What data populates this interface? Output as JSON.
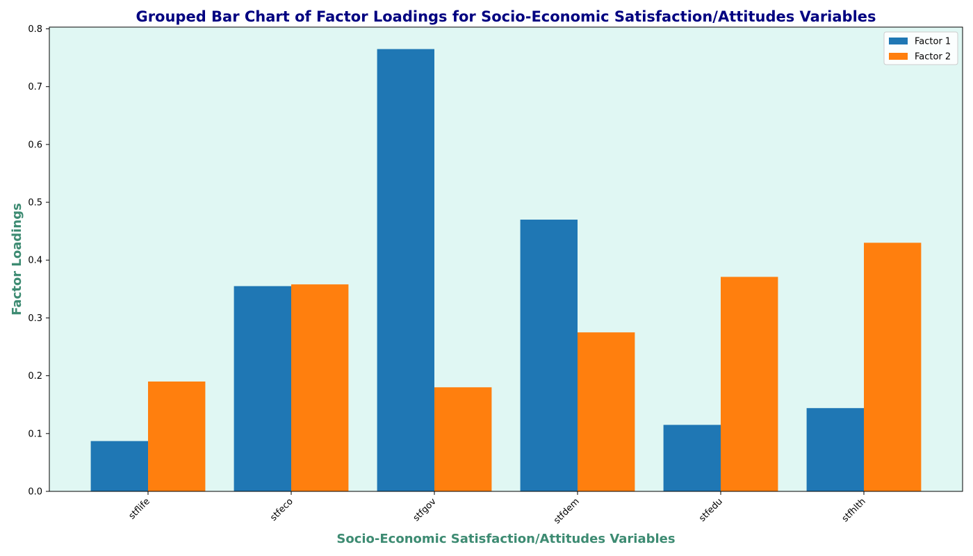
{
  "chart_data": {
    "type": "bar",
    "title": "Grouped Bar Chart of Factor Loadings for Socio-Economic Satisfaction/Attitudes Variables",
    "xlabel": "Socio-Economic Satisfaction/Attitudes Variables",
    "ylabel": "Factor Loadings",
    "categories": [
      "stflife",
      "stfeco",
      "stfgov",
      "stfdem",
      "stfedu",
      "stfhlth"
    ],
    "series": [
      {
        "name": "Factor 1",
        "color": "#1f77b4",
        "values": [
          0.087,
          0.355,
          0.765,
          0.47,
          0.115,
          0.144
        ]
      },
      {
        "name": "Factor 2",
        "color": "#ff7f0e",
        "values": [
          0.19,
          0.358,
          0.18,
          0.275,
          0.371,
          0.43
        ]
      }
    ],
    "ylim": [
      0,
      0.803
    ],
    "yticks": [
      "0.0",
      "0.1",
      "0.2",
      "0.3",
      "0.4",
      "0.5",
      "0.6",
      "0.7",
      "0.8"
    ],
    "legend_position": "top-right",
    "grid": false,
    "colors": {
      "plot_background": "#e0f7f3",
      "title": "#000080",
      "axis_label": "#3d8b72"
    }
  }
}
